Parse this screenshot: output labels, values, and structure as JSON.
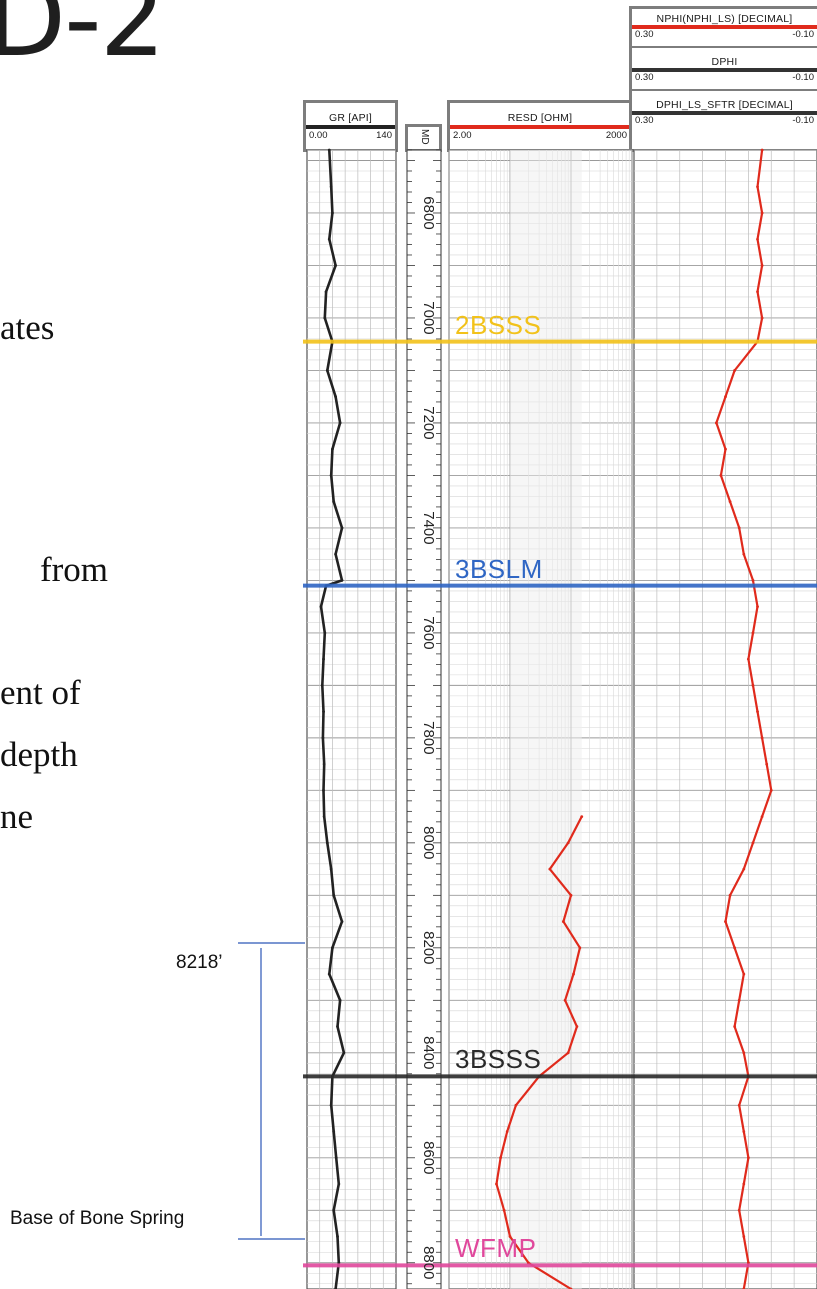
{
  "slide": {
    "title": "D-2",
    "text_fragments": [
      "ates",
      "from",
      "ent of",
      "depth",
      "ne"
    ]
  },
  "annotations": {
    "interval_top_depth": "8218’",
    "interval_base_label": "Base of Bone Spring",
    "interval_color": "#2c57b8"
  },
  "tracks": {
    "gr": {
      "title": "GR [API]",
      "min": "0.00",
      "max": "140",
      "color": "#222222"
    },
    "depth": {
      "title": "MD"
    },
    "resd": {
      "title": "RESD [OHM]",
      "min": "2.00",
      "max": "2000",
      "color": "#e02a1c"
    },
    "nphi": {
      "title": "NPHI(NPHI_LS) [DECIMAL]",
      "min": "0.30",
      "max": "-0.10",
      "color": "#e02a1c"
    },
    "dphi": {
      "title": "DPHI",
      "min": "0.30",
      "max": "-0.10",
      "color": "#333333"
    },
    "dphi_ls": {
      "title": "DPHI_LS_SFTR [DECIMAL]",
      "min": "0.30",
      "max": "-0.10",
      "color": "#333333"
    }
  },
  "chart_data": {
    "type": "line",
    "depth_unit": "ft",
    "depth_range": [
      6680,
      8850
    ],
    "depth_ticks": [
      6800,
      7000,
      7200,
      7400,
      7600,
      7800,
      8000,
      8200,
      8400,
      8600,
      8800
    ],
    "formation_tops": [
      {
        "name": "2BSSS",
        "depth": 7045,
        "color": "#f2c21a"
      },
      {
        "name": "3BSLM",
        "depth": 7510,
        "color": "#2f66c4"
      },
      {
        "name": "3BSSS",
        "depth": 8445,
        "color": "#2a2a2a"
      },
      {
        "name": "WFMP",
        "depth": 8805,
        "color": "#e0489c"
      }
    ],
    "series": [
      {
        "name": "GR",
        "unit": "API",
        "scale": [
          0,
          140
        ],
        "points": [
          [
            6680,
            35
          ],
          [
            6750,
            38
          ],
          [
            6800,
            40
          ],
          [
            6850,
            35
          ],
          [
            6900,
            45
          ],
          [
            6950,
            30
          ],
          [
            7000,
            28
          ],
          [
            7045,
            40
          ],
          [
            7100,
            32
          ],
          [
            7150,
            45
          ],
          [
            7200,
            52
          ],
          [
            7250,
            40
          ],
          [
            7300,
            38
          ],
          [
            7350,
            42
          ],
          [
            7400,
            55
          ],
          [
            7450,
            45
          ],
          [
            7500,
            55
          ],
          [
            7510,
            30
          ],
          [
            7550,
            22
          ],
          [
            7600,
            28
          ],
          [
            7650,
            26
          ],
          [
            7700,
            24
          ],
          [
            7750,
            26
          ],
          [
            7800,
            25
          ],
          [
            7850,
            27
          ],
          [
            7900,
            26
          ],
          [
            7950,
            27
          ],
          [
            8000,
            32
          ],
          [
            8050,
            38
          ],
          [
            8100,
            42
          ],
          [
            8150,
            55
          ],
          [
            8200,
            40
          ],
          [
            8250,
            35
          ],
          [
            8300,
            52
          ],
          [
            8350,
            48
          ],
          [
            8400,
            58
          ],
          [
            8445,
            40
          ],
          [
            8500,
            38
          ],
          [
            8550,
            42
          ],
          [
            8600,
            46
          ],
          [
            8650,
            50
          ],
          [
            8700,
            42
          ],
          [
            8750,
            48
          ],
          [
            8800,
            50
          ],
          [
            8850,
            45
          ]
        ]
      },
      {
        "name": "RESD",
        "unit": "OHM",
        "scale": [
          2,
          2000
        ],
        "log": true,
        "points": [
          [
            7950,
            300
          ],
          [
            8000,
            180
          ],
          [
            8050,
            90
          ],
          [
            8100,
            200
          ],
          [
            8150,
            150
          ],
          [
            8200,
            280
          ],
          [
            8250,
            220
          ],
          [
            8300,
            160
          ],
          [
            8350,
            250
          ],
          [
            8400,
            180
          ],
          [
            8445,
            60
          ],
          [
            8500,
            25
          ],
          [
            8550,
            18
          ],
          [
            8600,
            14
          ],
          [
            8650,
            12
          ],
          [
            8700,
            16
          ],
          [
            8750,
            20
          ],
          [
            8800,
            40
          ],
          [
            8850,
            200
          ]
        ]
      },
      {
        "name": "NPHI",
        "unit": "DECIMAL",
        "scale": [
          0.3,
          -0.1
        ],
        "points": [
          [
            6680,
            0.02
          ],
          [
            6750,
            0.03
          ],
          [
            6800,
            0.02
          ],
          [
            6850,
            0.03
          ],
          [
            6900,
            0.02
          ],
          [
            6950,
            0.03
          ],
          [
            7000,
            0.02
          ],
          [
            7045,
            0.03
          ],
          [
            7100,
            0.08
          ],
          [
            7150,
            0.1
          ],
          [
            7200,
            0.12
          ],
          [
            7250,
            0.1
          ],
          [
            7300,
            0.11
          ],
          [
            7350,
            0.09
          ],
          [
            7400,
            0.07
          ],
          [
            7450,
            0.06
          ],
          [
            7500,
            0.04
          ],
          [
            7550,
            0.03
          ],
          [
            7600,
            0.04
          ],
          [
            7650,
            0.05
          ],
          [
            7700,
            0.04
          ],
          [
            7750,
            0.03
          ],
          [
            7800,
            0.02
          ],
          [
            7850,
            0.01
          ],
          [
            7900,
            0.0
          ],
          [
            7950,
            0.02
          ],
          [
            8000,
            0.04
          ],
          [
            8050,
            0.06
          ],
          [
            8100,
            0.09
          ],
          [
            8150,
            0.1
          ],
          [
            8200,
            0.08
          ],
          [
            8250,
            0.06
          ],
          [
            8300,
            0.07
          ],
          [
            8350,
            0.08
          ],
          [
            8400,
            0.06
          ],
          [
            8445,
            0.05
          ],
          [
            8500,
            0.07
          ],
          [
            8550,
            0.06
          ],
          [
            8600,
            0.05
          ],
          [
            8650,
            0.06
          ],
          [
            8700,
            0.07
          ],
          [
            8750,
            0.06
          ],
          [
            8800,
            0.05
          ],
          [
            8850,
            0.06
          ]
        ]
      }
    ]
  }
}
